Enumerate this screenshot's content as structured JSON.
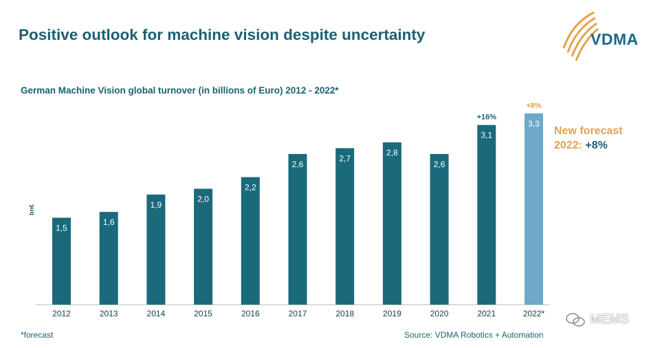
{
  "title": "Positive outlook for machine vision despite uncertainty",
  "logo": {
    "text": "VDMA"
  },
  "chart_data": {
    "type": "bar",
    "title": "German Machine Vision global turnover (in billions of Euro) 2012 - 2022*",
    "ylabel": "bn€",
    "categories": [
      "2012",
      "2013",
      "2014",
      "2015",
      "2016",
      "2017",
      "2018",
      "2019",
      "2020",
      "2021",
      "2022*"
    ],
    "values": [
      1.5,
      1.6,
      1.9,
      2.0,
      2.2,
      2.6,
      2.7,
      2.8,
      2.6,
      3.1,
      3.3
    ],
    "value_labels": [
      "1,5",
      "1,6",
      "1,9",
      "2,0",
      "2,2",
      "2,6",
      "2,7",
      "2,8",
      "2,6",
      "3,1",
      "3,3"
    ],
    "annotations": [
      {
        "category": "2021",
        "text": "+16%",
        "color": "#1a5f73"
      },
      {
        "category": "2022*",
        "text": "+8%",
        "color": "#e3a24a"
      }
    ],
    "ylim": [
      0,
      3.5
    ],
    "grid": false,
    "colors": {
      "actual": "#1a6a7c",
      "forecast": "#6da9c8"
    }
  },
  "forecast_note": {
    "line1": "New forecast",
    "line2_prefix": "2022: ",
    "line2_value": "+8%"
  },
  "footnote": "*forecast",
  "source": "Source: VDMA Robotics + Automation",
  "watermark": "MEMS"
}
